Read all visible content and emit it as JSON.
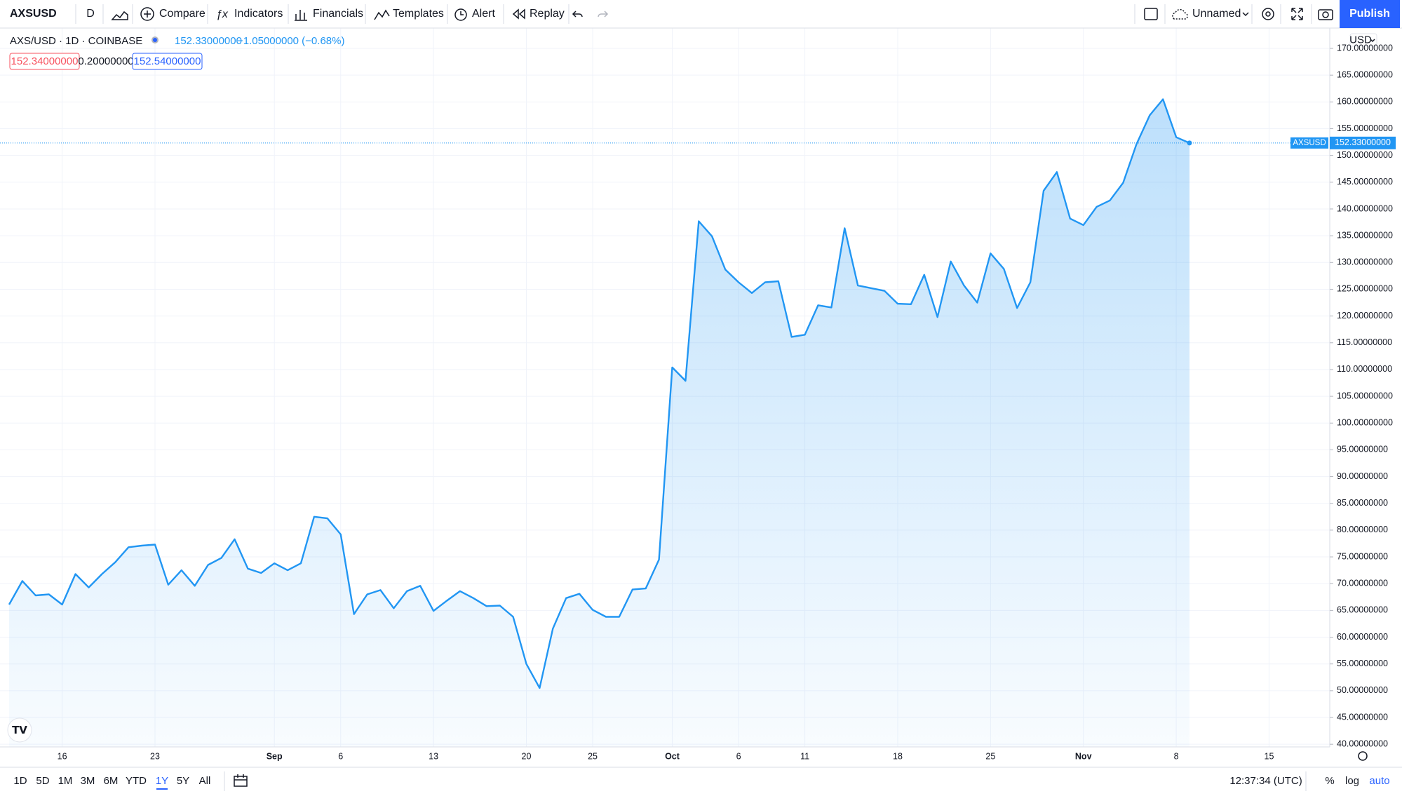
{
  "toolbar": {
    "symbol": "AXSUSD",
    "interval": "D",
    "compare": "Compare",
    "indicators": "Indicators",
    "financials": "Financials",
    "templates": "Templates",
    "alert": "Alert",
    "replay": "Replay",
    "layout_name": "Unnamed",
    "publish": "Publish"
  },
  "legend": {
    "title": "AXS/USD · 1D · COINBASE",
    "last": "152.33000000",
    "change": "−1.05000000 (−0.68%)",
    "bid": "152.34000000",
    "spread": "0.20000000",
    "ask": "152.54000000"
  },
  "price_axis": {
    "currency": "USD",
    "tag_symbol": "AXSUSD",
    "tag_price": "152.33000000"
  },
  "bottom_bar": {
    "ranges": [
      "1D",
      "5D",
      "1M",
      "3M",
      "6M",
      "YTD",
      "1Y",
      "5Y",
      "All"
    ],
    "active_range": 6,
    "clock": "12:37:34 (UTC)",
    "percent": "%",
    "log": "log",
    "auto": "auto"
  },
  "chart_data": {
    "type": "area",
    "color": "#2196f3",
    "grid": true,
    "log_scale": false,
    "categories": [
      "08-12",
      "08-13",
      "08-14",
      "08-15",
      "08-16",
      "08-17",
      "08-18",
      "08-19",
      "08-20",
      "08-21",
      "08-22",
      "08-23",
      "08-24",
      "08-25",
      "08-26",
      "08-27",
      "08-28",
      "08-29",
      "08-30",
      "08-31",
      "09-01",
      "09-02",
      "09-03",
      "09-04",
      "09-05",
      "09-06",
      "09-07",
      "09-08",
      "09-09",
      "09-10",
      "09-11",
      "09-12",
      "09-13",
      "09-14",
      "09-15",
      "09-16",
      "09-17",
      "09-18",
      "09-19",
      "09-20",
      "09-21",
      "09-22",
      "09-23",
      "09-24",
      "09-25",
      "09-26",
      "09-27",
      "09-28",
      "09-29",
      "09-30",
      "10-01",
      "10-02",
      "10-03",
      "10-04",
      "10-05",
      "10-06",
      "10-07",
      "10-08",
      "10-09",
      "10-10",
      "10-11",
      "10-12",
      "10-13",
      "10-14",
      "10-15",
      "10-16",
      "10-17",
      "10-18",
      "10-19",
      "10-20",
      "10-21",
      "10-22",
      "10-23",
      "10-24",
      "10-25",
      "10-26",
      "10-27",
      "10-28",
      "10-29",
      "10-30",
      "10-31",
      "11-01",
      "11-02",
      "11-03",
      "11-04",
      "11-05",
      "11-06",
      "11-07",
      "11-08",
      "11-09"
    ],
    "values": [
      66.1,
      70.5,
      67.8,
      68.0,
      66.1,
      71.8,
      69.3,
      71.8,
      74.0,
      76.8,
      77.1,
      77.3,
      69.8,
      72.5,
      69.6,
      73.5,
      74.8,
      78.3,
      72.8,
      72.0,
      73.8,
      72.5,
      73.8,
      82.5,
      82.2,
      79.2,
      64.3,
      68.0,
      68.8,
      65.4,
      68.6,
      69.6,
      64.9,
      66.8,
      68.6,
      67.3,
      65.8,
      65.9,
      63.8,
      55.0,
      50.5,
      61.6,
      67.3,
      68.1,
      65.1,
      63.8,
      63.8,
      68.9,
      69.1,
      74.5,
      110.4,
      107.9,
      137.7,
      134.9,
      128.7,
      126.3,
      124.3,
      126.3,
      126.5,
      116.1,
      116.5,
      122.0,
      121.6,
      136.4,
      125.7,
      125.2,
      124.7,
      122.3,
      122.2,
      127.7,
      119.8,
      130.2,
      125.7,
      122.5,
      131.7,
      128.8,
      121.5,
      126.3,
      143.4,
      146.9,
      138.2,
      137.0,
      140.4,
      141.6,
      144.9,
      152.1,
      157.5,
      160.5,
      153.4,
      152.33
    ],
    "xticks": [
      {
        "value": "08-16",
        "label": "16"
      },
      {
        "value": "08-23",
        "label": "23"
      },
      {
        "value": "09-01",
        "label": "Sep"
      },
      {
        "value": "09-06",
        "label": "6"
      },
      {
        "value": "09-13",
        "label": "13"
      },
      {
        "value": "09-20",
        "label": "20"
      },
      {
        "value": "09-25",
        "label": "25"
      },
      {
        "value": "10-01",
        "label": "Oct"
      },
      {
        "value": "10-06",
        "label": "6"
      },
      {
        "value": "10-11",
        "label": "11"
      },
      {
        "value": "10-18",
        "label": "18"
      },
      {
        "value": "10-25",
        "label": "25"
      },
      {
        "value": "11-01",
        "label": "Nov"
      },
      {
        "value": "11-08",
        "label": "8"
      },
      {
        "value": "11-15",
        "label": "15"
      }
    ],
    "ylim": [
      39.5,
      173.8
    ],
    "yticks": [
      {
        "value": 40,
        "label": "40.00000000"
      },
      {
        "value": 45,
        "label": "45.00000000"
      },
      {
        "value": 50,
        "label": "50.00000000"
      },
      {
        "value": 55,
        "label": "55.00000000"
      },
      {
        "value": 60,
        "label": "60.00000000"
      },
      {
        "value": 65,
        "label": "65.00000000"
      },
      {
        "value": 70,
        "label": "70.00000000"
      },
      {
        "value": 75,
        "label": "75.00000000"
      },
      {
        "value": 80,
        "label": "80.00000000"
      },
      {
        "value": 85,
        "label": "85.00000000"
      },
      {
        "value": 90,
        "label": "90.00000000"
      },
      {
        "value": 95,
        "label": "95.00000000"
      },
      {
        "value": 100,
        "label": "100.00000000"
      },
      {
        "value": 105,
        "label": "105.00000000"
      },
      {
        "value": 110,
        "label": "110.00000000"
      },
      {
        "value": 115,
        "label": "115.00000000"
      },
      {
        "value": 120,
        "label": "120.00000000"
      },
      {
        "value": 125,
        "label": "125.00000000"
      },
      {
        "value": 130,
        "label": "130.00000000"
      },
      {
        "value": 135,
        "label": "135.00000000"
      },
      {
        "value": 140,
        "label": "140.00000000"
      },
      {
        "value": 145,
        "label": "145.00000000"
      },
      {
        "value": 150,
        "label": "150.00000000"
      },
      {
        "value": 155,
        "label": "155.00000000"
      },
      {
        "value": 160,
        "label": "160.00000000"
      },
      {
        "value": 165,
        "label": "165.00000000"
      },
      {
        "value": 170,
        "label": "170.00000000"
      }
    ]
  }
}
